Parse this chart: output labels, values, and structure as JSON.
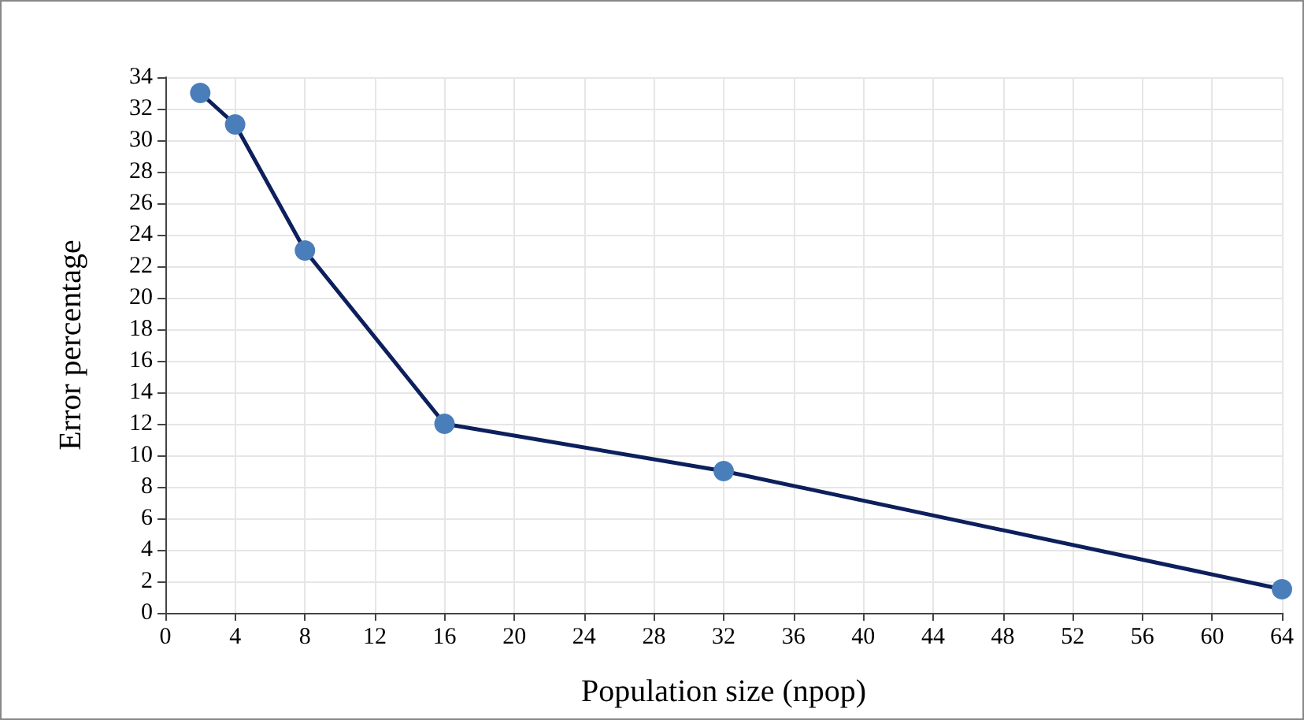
{
  "chart_data": {
    "type": "line",
    "xlabel": "Population size (npop)",
    "ylabel": "Error percentage",
    "x": [
      2,
      4,
      8,
      16,
      32,
      64
    ],
    "series": [
      {
        "color": "#0d1f5c",
        "values": [
          33,
          31,
          23,
          12,
          9,
          1.5
        ]
      }
    ],
    "xlim": [
      0,
      64
    ],
    "xticks": [
      0,
      4,
      8,
      12,
      16,
      20,
      24,
      28,
      32,
      36,
      40,
      44,
      48,
      52,
      56,
      60,
      64
    ],
    "ylim": [
      0,
      34
    ],
    "yticks": [
      0,
      2,
      4,
      6,
      8,
      10,
      12,
      14,
      16,
      18,
      20,
      22,
      24,
      26,
      28,
      30,
      32,
      34
    ],
    "grid": true,
    "marker": "circle",
    "line_style": "solid"
  }
}
